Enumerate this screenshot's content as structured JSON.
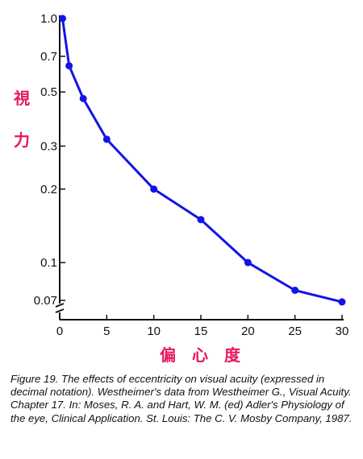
{
  "chart_data": {
    "type": "line",
    "title": "",
    "xlabel": "偏 心 度",
    "ylabel": "視力",
    "y_scale": "log",
    "xlim": [
      0,
      30
    ],
    "ylim": [
      0.07,
      1.0
    ],
    "x_ticks": [
      0,
      5,
      10,
      15,
      20,
      25,
      30
    ],
    "y_ticks": [
      1.0,
      0.7,
      0.5,
      0.3,
      0.2,
      0.1,
      0.07
    ],
    "y_tick_labels": [
      "1.0",
      "0.7",
      "0.5",
      "0.3",
      "0.2",
      "0.1",
      "0.07"
    ],
    "grid": false,
    "legend": "none",
    "series": [
      {
        "x": [
          0.3,
          1,
          2.5,
          5,
          10,
          15,
          20,
          25,
          30
        ],
        "y": [
          1.0,
          0.64,
          0.47,
          0.32,
          0.2,
          0.15,
          0.1,
          0.077,
          0.069
        ],
        "color": "#1414e6"
      }
    ]
  },
  "caption": "Figure 19. The effects of eccentricity on visual acuity (expressed in decimal notation). Westheimer's data from Westheimer G., Visual Acuity. Chapter 17. In: Moses, R. A. and Hart, W. M. (ed) Adler's Physiology of the eye, Clinical Application. St. Louis: The C. V. Mosby Company, 1987."
}
